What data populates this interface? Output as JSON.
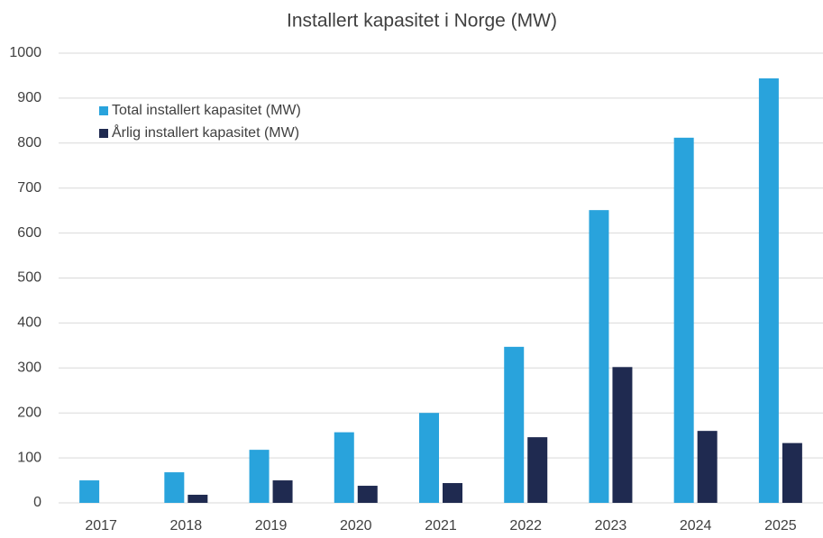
{
  "chart_data": {
    "type": "bar",
    "title": "Installert kapasitet i Norge (MW)",
    "categories": [
      "2017",
      "2018",
      "2019",
      "2020",
      "2021",
      "2022",
      "2023",
      "2024",
      "2025"
    ],
    "series": [
      {
        "name": "Total installert kapasitet (MW)",
        "color": "#29a3dc",
        "values": [
          50,
          68,
          118,
          157,
          200,
          347,
          651,
          812,
          944
        ]
      },
      {
        "name": "Årlig installert kapasitet (MW)",
        "color": "#1f2a50",
        "values": [
          0,
          18,
          50,
          38,
          44,
          146,
          302,
          160,
          133
        ]
      }
    ],
    "ylim": [
      0,
      1000
    ],
    "yticks": [
      0,
      100,
      200,
      300,
      400,
      500,
      600,
      700,
      800,
      900,
      1000
    ],
    "grid": true,
    "legend": "top-left"
  }
}
